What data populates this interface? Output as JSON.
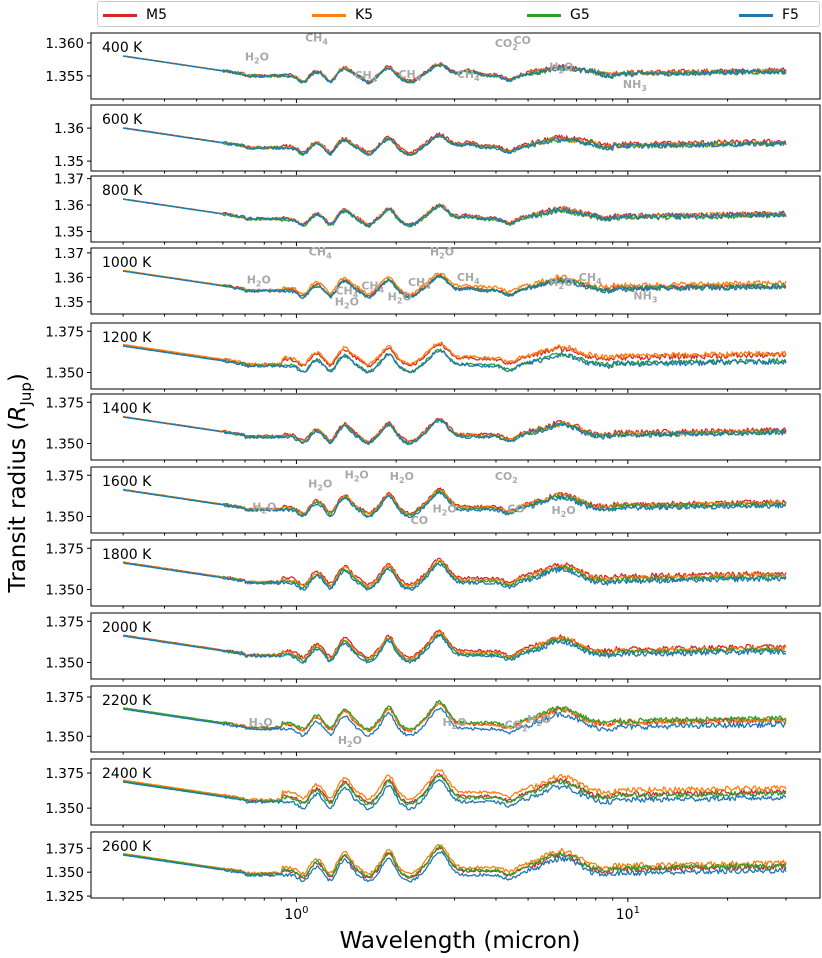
{
  "legend": {
    "items": [
      {
        "label": "M5",
        "color": "#d62728"
      },
      {
        "label": "K5",
        "color": "#ff7f0e"
      },
      {
        "label": "G5",
        "color": "#2ca02c"
      },
      {
        "label": "F5",
        "color": "#1f77b4"
      }
    ]
  },
  "axes": {
    "ylabel_prefix": "Transit radius (",
    "ylabel_symbol": "R",
    "ylabel_sub": "Jup",
    "ylabel_suffix": ")",
    "xlabel": "Wavelength (micron)",
    "xticks": [
      {
        "value": 1,
        "base": "10",
        "exp": "0"
      },
      {
        "value": 10,
        "base": "10",
        "exp": "1"
      }
    ],
    "xscale": "log",
    "xlim": [
      0.24,
      38
    ]
  },
  "chart_data": [
    {
      "type": "line",
      "panel": "400 K",
      "temperature": 400,
      "ylim": [
        1.3515,
        1.3615
      ],
      "yticks": [
        "1.360",
        "1.355"
      ],
      "annotations": [
        {
          "label": "H",
          "sub": "2",
          "suffix": "O",
          "x": 0.76,
          "y": 1.3573
        },
        {
          "label": "CH",
          "sub": "4",
          "suffix": "",
          "x": 1.15,
          "y": 1.3602
        },
        {
          "label": "CH",
          "sub": "4",
          "suffix": "",
          "x": 1.62,
          "y": 1.3545
        },
        {
          "label": "CH",
          "sub": "4",
          "suffix": "",
          "x": 2.2,
          "y": 1.3547
        },
        {
          "label": "CH",
          "sub": "4",
          "suffix": "",
          "x": 3.3,
          "y": 1.3547
        },
        {
          "label": "CO",
          "sub": "2",
          "suffix": "",
          "x": 4.3,
          "y": 1.3594
        },
        {
          "label": "CO",
          "sub": "",
          "suffix": "",
          "x": 4.8,
          "y": 1.3598
        },
        {
          "label": "H",
          "sub": "2",
          "suffix": "O",
          "x": 6.3,
          "y": 1.3558
        },
        {
          "label": "NH",
          "sub": "3",
          "suffix": "",
          "x": 10.5,
          "y": 1.3532
        }
      ],
      "series": [
        {
          "name": "M5",
          "offset": 0.0002
        },
        {
          "name": "K5",
          "offset": 0.0001
        },
        {
          "name": "G5",
          "offset": 0.0
        },
        {
          "name": "F5",
          "offset": 0.0
        }
      ]
    },
    {
      "type": "line",
      "panel": "600 K",
      "temperature": 600,
      "ylim": [
        1.347,
        1.367
      ],
      "yticks": [
        "1.36",
        "1.35"
      ],
      "annotations": [],
      "series": [
        {
          "name": "M5",
          "offset": 0.0006
        },
        {
          "name": "K5",
          "offset": 0.0002
        },
        {
          "name": "G5",
          "offset": 0.0
        },
        {
          "name": "F5",
          "offset": 0.0
        }
      ]
    },
    {
      "type": "line",
      "panel": "800 K",
      "temperature": 800,
      "ylim": [
        1.346,
        1.371
      ],
      "yticks": [
        "1.37",
        "1.36",
        "1.35"
      ],
      "annotations": [],
      "series": [
        {
          "name": "M5",
          "offset": 0.0004
        },
        {
          "name": "K5",
          "offset": 0.0002
        },
        {
          "name": "G5",
          "offset": -0.0003
        },
        {
          "name": "F5",
          "offset": 0.0
        }
      ]
    },
    {
      "type": "line",
      "panel": "1000 K",
      "temperature": 1000,
      "ylim": [
        1.345,
        1.372
      ],
      "yticks": [
        "1.37",
        "1.36",
        "1.35"
      ],
      "annotations": [
        {
          "label": "H",
          "sub": "2",
          "suffix": "O",
          "x": 0.77,
          "y": 1.3575
        },
        {
          "label": "CH",
          "sub": "4",
          "suffix": "",
          "x": 1.18,
          "y": 1.369
        },
        {
          "label": "CH",
          "sub": "4",
          "suffix": "",
          "x": 1.42,
          "y": 1.353
        },
        {
          "label": "H",
          "sub": "2",
          "suffix": "O",
          "x": 1.42,
          "y": 1.3485
        },
        {
          "label": "CH",
          "sub": "4",
          "suffix": "",
          "x": 1.7,
          "y": 1.355
        },
        {
          "label": "H",
          "sub": "2",
          "suffix": "O",
          "x": 2.05,
          "y": 1.3505
        },
        {
          "label": "CH",
          "sub": "4",
          "suffix": "",
          "x": 2.35,
          "y": 1.3565
        },
        {
          "label": "H",
          "sub": "2",
          "suffix": "O",
          "x": 2.75,
          "y": 1.369
        },
        {
          "label": "CH",
          "sub": "4",
          "suffix": "",
          "x": 3.3,
          "y": 1.3585
        },
        {
          "label": "H",
          "sub": "2",
          "suffix": "O",
          "x": 6.3,
          "y": 1.3565
        },
        {
          "label": "CH",
          "sub": "4",
          "suffix": "",
          "x": 7.7,
          "y": 1.3585
        },
        {
          "label": "NH",
          "sub": "3",
          "suffix": "",
          "x": 11.3,
          "y": 1.351
        }
      ],
      "series": [
        {
          "name": "M5",
          "offset": 0.0005
        },
        {
          "name": "K5",
          "offset": 0.0015
        },
        {
          "name": "G5",
          "offset": 0.0002
        },
        {
          "name": "F5",
          "offset": 0.0
        }
      ]
    },
    {
      "type": "line",
      "panel": "1200 K",
      "temperature": 1200,
      "ylim": [
        1.34,
        1.38
      ],
      "yticks": [
        "1.375",
        "1.350"
      ],
      "annotations": [],
      "series": [
        {
          "name": "M5",
          "offset": 0.004
        },
        {
          "name": "K5",
          "offset": 0.005
        },
        {
          "name": "G5",
          "offset": 0.0005
        },
        {
          "name": "F5",
          "offset": 0.0
        }
      ]
    },
    {
      "type": "line",
      "panel": "1400 K",
      "temperature": 1400,
      "ylim": [
        1.34,
        1.38
      ],
      "yticks": [
        "1.375",
        "1.350"
      ],
      "annotations": [],
      "series": [
        {
          "name": "M5",
          "offset": 0.0015
        },
        {
          "name": "K5",
          "offset": 0.0008
        },
        {
          "name": "G5",
          "offset": 0.0003
        },
        {
          "name": "F5",
          "offset": 0.0
        }
      ]
    },
    {
      "type": "line",
      "panel": "1600 K",
      "temperature": 1600,
      "ylim": [
        1.34,
        1.38
      ],
      "yticks": [
        "1.375",
        "1.350"
      ],
      "annotations": [
        {
          "label": "H",
          "sub": "2",
          "suffix": "O",
          "x": 0.8,
          "y": 1.3535
        },
        {
          "label": "H",
          "sub": "2",
          "suffix": "O",
          "x": 1.18,
          "y": 1.3675
        },
        {
          "label": "H",
          "sub": "2",
          "suffix": "O",
          "x": 1.52,
          "y": 1.373
        },
        {
          "label": "H",
          "sub": "2",
          "suffix": "O",
          "x": 2.08,
          "y": 1.372
        },
        {
          "label": "CO",
          "sub": "",
          "suffix": "",
          "x": 2.35,
          "y": 1.3455
        },
        {
          "label": "H",
          "sub": "2",
          "suffix": "O",
          "x": 2.8,
          "y": 1.3525
        },
        {
          "label": "CO",
          "sub": "2",
          "suffix": "",
          "x": 4.3,
          "y": 1.372
        },
        {
          "label": "CO",
          "sub": "",
          "suffix": "",
          "x": 4.6,
          "y": 1.3525
        },
        {
          "label": "H",
          "sub": "2",
          "suffix": "O",
          "x": 6.4,
          "y": 1.3515
        }
      ],
      "series": [
        {
          "name": "M5",
          "offset": 0.002
        },
        {
          "name": "K5",
          "offset": 0.0015
        },
        {
          "name": "G5",
          "offset": 0.0008
        },
        {
          "name": "F5",
          "offset": 0.0
        }
      ]
    },
    {
      "type": "line",
      "panel": "1800 K",
      "temperature": 1800,
      "ylim": [
        1.34,
        1.38
      ],
      "yticks": [
        "1.375",
        "1.350"
      ],
      "annotations": [],
      "series": [
        {
          "name": "M5",
          "offset": 0.003
        },
        {
          "name": "K5",
          "offset": 0.002
        },
        {
          "name": "G5",
          "offset": 0.001
        },
        {
          "name": "F5",
          "offset": 0.0
        }
      ]
    },
    {
      "type": "line",
      "panel": "2000 K",
      "temperature": 2000,
      "ylim": [
        1.34,
        1.38
      ],
      "yticks": [
        "1.375",
        "1.350"
      ],
      "annotations": [],
      "series": [
        {
          "name": "M5",
          "offset": 0.003
        },
        {
          "name": "K5",
          "offset": 0.002
        },
        {
          "name": "G5",
          "offset": 0.001
        },
        {
          "name": "F5",
          "offset": 0.0
        }
      ]
    },
    {
      "type": "line",
      "panel": "2200 K",
      "temperature": 2200,
      "ylim": [
        1.34,
        1.382
      ],
      "yticks": [
        "1.375",
        "1.350"
      ],
      "annotations": [
        {
          "label": "H",
          "sub": "2",
          "suffix": "O",
          "x": 0.78,
          "y": 1.3565
        },
        {
          "label": "H",
          "sub": "2",
          "suffix": "O",
          "x": 1.45,
          "y": 1.345
        },
        {
          "label": "H",
          "sub": "2",
          "suffix": "O",
          "x": 3.0,
          "y": 1.3565
        },
        {
          "label": "CO",
          "sub": "2",
          "suffix": "",
          "x": 4.6,
          "y": 1.355
        },
        {
          "label": "H",
          "sub": "2",
          "suffix": "O",
          "x": 5.4,
          "y": 1.3585
        }
      ],
      "series": [
        {
          "name": "M5",
          "offset": 0.003
        },
        {
          "name": "K5",
          "offset": 0.003
        },
        {
          "name": "G5",
          "offset": 0.004
        },
        {
          "name": "F5",
          "offset": 0.0
        }
      ]
    },
    {
      "type": "line",
      "panel": "2400 K",
      "temperature": 2400,
      "ylim": [
        1.338,
        1.385
      ],
      "yticks": [
        "1.375",
        "1.350"
      ],
      "annotations": [],
      "series": [
        {
          "name": "M5",
          "offset": 0.004
        },
        {
          "name": "K5",
          "offset": 0.007
        },
        {
          "name": "G5",
          "offset": 0.003
        },
        {
          "name": "F5",
          "offset": 0.0
        }
      ]
    },
    {
      "type": "line",
      "panel": "2600 K",
      "temperature": 2600,
      "ylim": [
        1.323,
        1.392
      ],
      "yticks": [
        "1.375",
        "1.350",
        "1.325"
      ],
      "annotations": [],
      "series": [
        {
          "name": "M5",
          "offset": 0.004
        },
        {
          "name": "K5",
          "offset": 0.008
        },
        {
          "name": "G5",
          "offset": 0.005
        },
        {
          "name": "F5",
          "offset": 0.0
        }
      ]
    }
  ]
}
